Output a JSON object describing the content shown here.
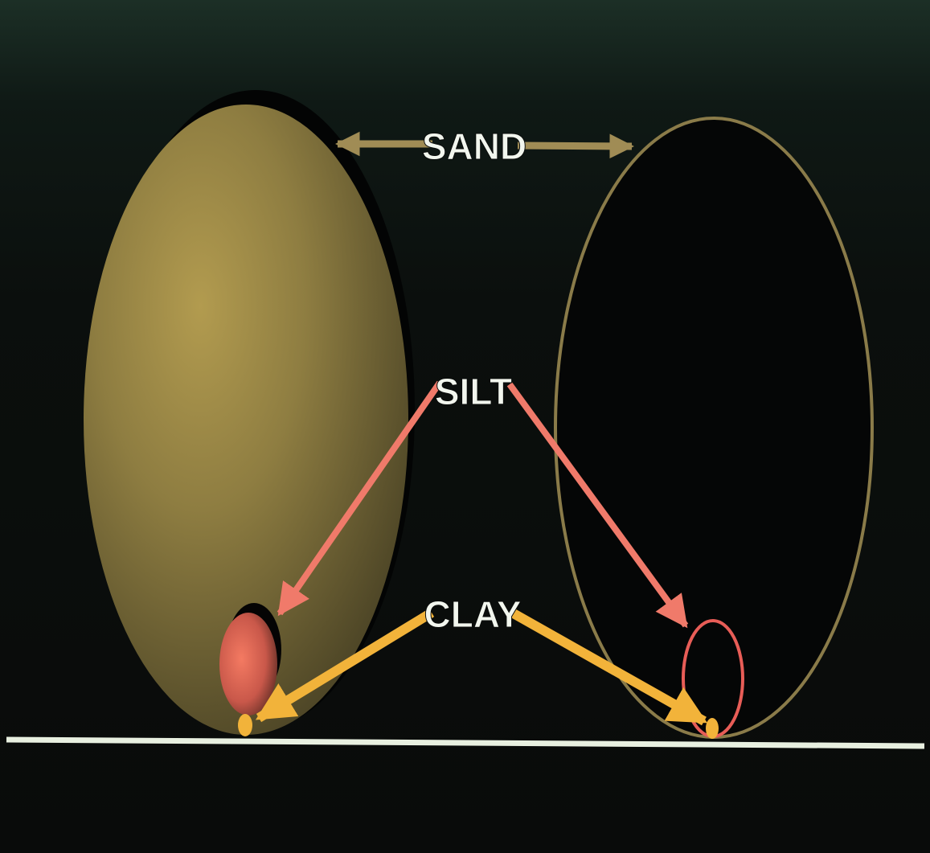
{
  "labels": {
    "sand": "SAND",
    "silt": "SILT",
    "clay": "CLAY"
  },
  "colors": {
    "background": "#0a0d0c",
    "sand_sphere": "#8c7a3e",
    "sand_outline": "#8a7b49",
    "sand_arrow": "#a08c55",
    "silt": "#f07a6a",
    "clay": "#f2b33a",
    "ground_line": "#e8f0e0",
    "label_text": "#ffffff"
  }
}
